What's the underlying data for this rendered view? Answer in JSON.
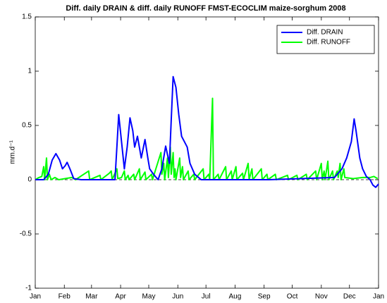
{
  "chart_data": {
    "type": "line",
    "title": "Diff. daily DRAIN & diff. daily RUNOFF FMST-ECOCLIM maize-sorghum 2008",
    "ylabel": "mm.d⁻¹",
    "xlim": [
      1,
      367
    ],
    "xticks": [
      {
        "value": 1,
        "label": "Jan"
      },
      {
        "value": 32,
        "label": "Feb"
      },
      {
        "value": 61,
        "label": "Mar"
      },
      {
        "value": 92,
        "label": "Apr"
      },
      {
        "value": 122,
        "label": "May"
      },
      {
        "value": 153,
        "label": "Jun"
      },
      {
        "value": 183,
        "label": "Jul"
      },
      {
        "value": 214,
        "label": "Aug"
      },
      {
        "value": 245,
        "label": "Sep"
      },
      {
        "value": 275,
        "label": "Oct"
      },
      {
        "value": 306,
        "label": "Nov"
      },
      {
        "value": 336,
        "label": "Dec"
      },
      {
        "value": 367,
        "label": "Jan"
      }
    ],
    "ylim": [
      -1,
      1.5
    ],
    "yticks": [
      -1,
      -0.5,
      0,
      0.5,
      1,
      1.5
    ],
    "zero_line": true,
    "legend": "upper right",
    "series": [
      {
        "name": "Diff. DRAIN",
        "color": "#0000ff",
        "x": [
          1,
          10,
          15,
          19,
          23,
          27,
          30,
          33,
          35,
          38,
          42,
          50,
          86,
          88,
          90,
          93,
          96,
          99,
          102,
          105,
          107,
          110,
          112,
          114,
          118,
          121,
          123,
          127,
          132,
          136,
          140,
          144,
          146,
          148,
          151,
          154,
          157,
          160,
          163,
          166,
          171,
          178,
          250,
          320,
          328,
          333,
          338,
          341,
          343,
          347,
          350,
          354,
          358,
          361,
          364,
          367
        ],
        "values": [
          0,
          0,
          0.05,
          0.18,
          0.24,
          0.18,
          0.1,
          0.13,
          0.16,
          0.1,
          0.01,
          0,
          0,
          0.3,
          0.6,
          0.35,
          0.1,
          0.3,
          0.57,
          0.45,
          0.3,
          0.4,
          0.3,
          0.2,
          0.37,
          0.2,
          0.1,
          0.05,
          0,
          0.1,
          0.31,
          0.15,
          0.55,
          0.95,
          0.85,
          0.6,
          0.4,
          0.35,
          0.3,
          0.15,
          0.05,
          0,
          0,
          0.02,
          0.1,
          0.2,
          0.35,
          0.56,
          0.45,
          0.2,
          0.1,
          0.03,
          0,
          -0.05,
          -0.07,
          -0.04
        ]
      },
      {
        "name": "Diff. RUNOFF",
        "color": "#00ff00",
        "x": [
          1,
          5,
          8,
          10,
          11,
          13,
          14,
          16,
          18,
          22,
          26,
          40,
          44,
          58,
          59,
          70,
          71,
          80,
          82,
          83,
          88,
          89,
          93,
          96,
          97,
          100,
          101,
          106,
          107,
          112,
          113,
          118,
          119,
          125,
          126,
          135,
          136,
          138,
          139,
          142,
          143,
          145,
          146,
          148,
          149,
          150,
          151,
          155,
          156,
          158,
          159,
          164,
          165,
          170,
          171,
          180,
          181,
          186,
          187,
          190,
          191,
          196,
          197,
          204,
          205,
          210,
          211,
          215,
          216,
          222,
          223,
          228,
          229,
          232,
          233,
          242,
          243,
          248,
          249,
          257,
          258,
          270,
          271,
          280,
          281,
          290,
          291,
          300,
          301,
          306,
          307,
          309,
          310,
          313,
          314,
          318,
          319,
          323,
          324,
          326,
          327,
          330,
          331,
          340,
          350,
          358,
          362,
          366
        ],
        "values": [
          0,
          0.02,
          0.03,
          0.12,
          0,
          0.2,
          0,
          0.05,
          0,
          0.02,
          0,
          0.02,
          0,
          0.08,
          0,
          0.04,
          0,
          0.06,
          0.08,
          0,
          0.1,
          0.01,
          0.02,
          0.08,
          0,
          0.04,
          0,
          0.05,
          0,
          0.1,
          0,
          0.07,
          0,
          0.05,
          0,
          0.25,
          0.05,
          0.15,
          0,
          0.2,
          0.02,
          0.3,
          0.05,
          0.25,
          0.02,
          0.1,
          0,
          0.2,
          0.02,
          0.12,
          0,
          0.08,
          0,
          0.05,
          0,
          0.1,
          0,
          0.05,
          0,
          0.75,
          0,
          0.05,
          0,
          0.12,
          0,
          0.08,
          0,
          0.12,
          0,
          0.06,
          0,
          0.15,
          0,
          0.1,
          0,
          0.1,
          0,
          0.05,
          0,
          0.05,
          0,
          0.04,
          0,
          0.04,
          0,
          0.05,
          0,
          0.08,
          0,
          0.15,
          0,
          0.08,
          0,
          0.17,
          0,
          0.08,
          0,
          0.08,
          0.02,
          0.15,
          0,
          0.1,
          0.02,
          0.01,
          0.02,
          0.02,
          0.03,
          0.01
        ]
      }
    ]
  }
}
